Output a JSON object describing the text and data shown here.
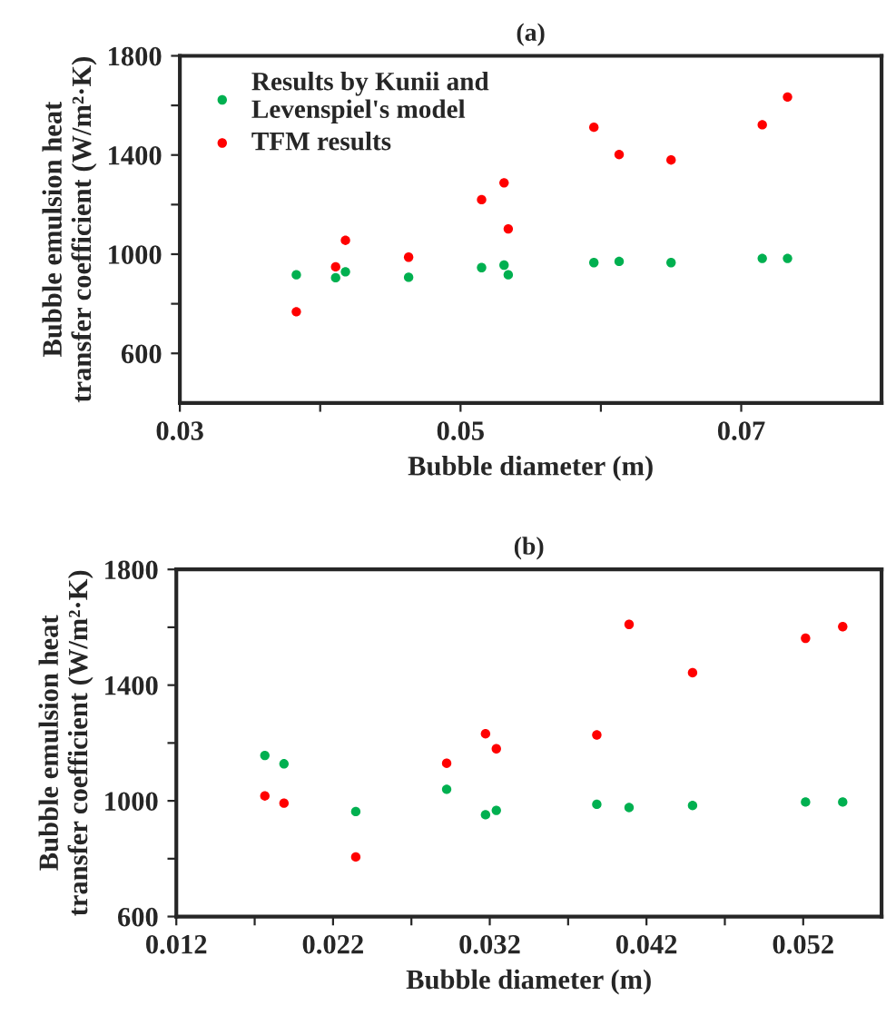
{
  "chart_data": [
    {
      "type": "scatter",
      "title": "(a)",
      "xlabel": "Bubble diameter (m)",
      "ylabel": "Bubble emulsion heat\ntransfer coefficient (W/m²·K)",
      "xlim": [
        0.03,
        0.08
      ],
      "xticks": [
        0.03,
        {
          "value": 0.04,
          "label": null
        },
        0.05,
        {
          "value": 0.06,
          "label": null
        },
        0.07
      ],
      "ylim": [
        400,
        1800
      ],
      "yticks": [
        600,
        {
          "value": 800,
          "label": null
        },
        1000,
        {
          "value": 1200,
          "label": null
        },
        1400,
        {
          "value": 1600,
          "label": null
        },
        1800
      ],
      "grid": false,
      "legend": "top left",
      "marker": "circle",
      "series": [
        {
          "name": "Results by Kunii and\nLevenspiel's model",
          "color": "#00b050",
          "x": [
            0.0383,
            0.0411,
            0.0418,
            0.0463,
            0.0515,
            0.0531,
            0.0534,
            0.0595,
            0.0613,
            0.065,
            0.0715,
            0.0733
          ],
          "values": [
            917,
            905,
            929,
            907,
            946,
            956,
            917,
            966,
            971,
            966,
            983,
            983
          ]
        },
        {
          "name": "TFM results",
          "color": "#ff0000",
          "x": [
            0.0383,
            0.0411,
            0.0418,
            0.0463,
            0.0515,
            0.0531,
            0.0534,
            0.0595,
            0.0613,
            0.065,
            0.0715,
            0.0733
          ],
          "values": [
            768,
            949,
            1056,
            988,
            1220,
            1288,
            1102,
            1512,
            1402,
            1380,
            1522,
            1634
          ]
        }
      ]
    },
    {
      "type": "scatter",
      "title": "(b)",
      "xlabel": "Bubble diameter (m)",
      "ylabel": "Bubble emulsion heat\ntransfer coefficient (W/m²·K)",
      "xlim": [
        0.012,
        0.057
      ],
      "xticks": [
        0.012,
        {
          "value": 0.017,
          "label": null
        },
        0.022,
        {
          "value": 0.027,
          "label": null
        },
        0.032,
        {
          "value": 0.037,
          "label": null
        },
        0.042,
        {
          "value": 0.047,
          "label": null
        },
        0.052
      ],
      "ylim": [
        600,
        1800
      ],
      "yticks": [
        600,
        {
          "value": 800,
          "label": null
        },
        1000,
        {
          "value": 1200,
          "label": null
        },
        1400,
        {
          "value": 1600,
          "label": null
        },
        1800
      ],
      "grid": false,
      "marker": "circle",
      "series": [
        {
          "color": "#00b050",
          "x": [
            0.01765,
            0.01887,
            0.02345,
            0.02925,
            0.03173,
            0.03242,
            0.03883,
            0.04089,
            0.04494,
            0.05215,
            0.05452
          ],
          "values": [
            1157,
            1128,
            963,
            1040,
            952,
            967,
            988,
            977,
            984,
            996,
            996
          ]
        },
        {
          "color": "#ff0000",
          "x": [
            0.01765,
            0.01887,
            0.02345,
            0.02925,
            0.03173,
            0.03242,
            0.03883,
            0.04089,
            0.04494,
            0.05215,
            0.05452
          ],
          "values": [
            1017,
            992,
            806,
            1130,
            1232,
            1180,
            1228,
            1610,
            1443,
            1562,
            1602
          ]
        }
      ]
    }
  ]
}
